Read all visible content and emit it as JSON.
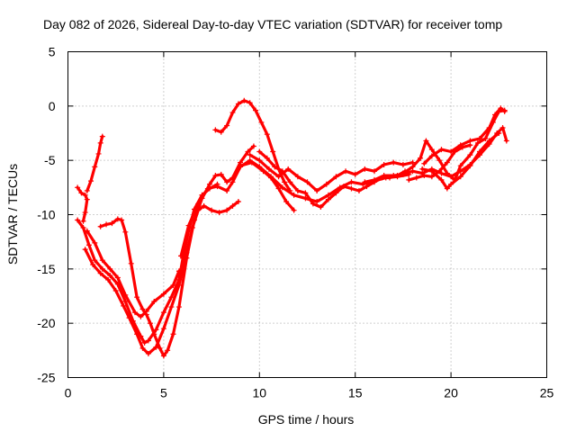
{
  "chart_data": {
    "type": "scatter",
    "title": "Day 082 of 2026, Sidereal Day-to-day VTEC variation (SDTVAR) for receiver tomp",
    "xlabel": "GPS time / hours",
    "ylabel": "SDTVAR / TECUs",
    "xlim": [
      0,
      25
    ],
    "ylim": [
      -25,
      5
    ],
    "xticks": [
      "0",
      "5",
      "10",
      "15",
      "20",
      "25"
    ],
    "yticks": [
      "-25",
      "-20",
      "-15",
      "-10",
      "-5",
      "0",
      "5"
    ],
    "grid": true,
    "marker": "plus",
    "color": "#ff0000",
    "series": [
      {
        "points": [
          [
            0.5,
            -10.5
          ],
          [
            0.8,
            -11.2
          ],
          [
            1.1,
            -12.8
          ],
          [
            1.4,
            -14.2
          ],
          [
            1.8,
            -15.0
          ],
          [
            2.2,
            -15.6
          ],
          [
            2.6,
            -16.4
          ],
          [
            3.0,
            -18.0
          ],
          [
            3.4,
            -19.8
          ],
          [
            3.8,
            -21.2
          ],
          [
            4.0,
            -21.8
          ],
          [
            4.2,
            -21.6
          ],
          [
            4.6,
            -20.6
          ],
          [
            5.0,
            -19.0
          ],
          [
            5.4,
            -17.6
          ],
          [
            5.8,
            -16.0
          ],
          [
            6.0,
            -14.0
          ],
          [
            6.3,
            -11.5
          ],
          [
            6.6,
            -9.5
          ],
          [
            7.0,
            -8.2
          ],
          [
            7.4,
            -7.6
          ],
          [
            7.8,
            -7.2
          ]
        ]
      },
      {
        "points": [
          [
            0.9,
            -13.2
          ],
          [
            1.3,
            -14.6
          ],
          [
            1.7,
            -15.4
          ],
          [
            2.1,
            -16.0
          ],
          [
            2.5,
            -17.0
          ],
          [
            2.9,
            -18.4
          ],
          [
            3.2,
            -19.5
          ],
          [
            3.6,
            -21.0
          ],
          [
            3.9,
            -22.3
          ],
          [
            4.2,
            -22.8
          ],
          [
            4.6,
            -22.2
          ],
          [
            5.0,
            -20.5
          ],
          [
            5.4,
            -18.5
          ],
          [
            5.8,
            -16.5
          ],
          [
            6.2,
            -13.5
          ],
          [
            6.5,
            -11.2
          ],
          [
            6.8,
            -9.6
          ],
          [
            7.1,
            -9.2
          ],
          [
            7.5,
            -9.6
          ],
          [
            7.9,
            -9.8
          ],
          [
            8.3,
            -9.6
          ],
          [
            8.6,
            -9.2
          ],
          [
            8.9,
            -8.8
          ]
        ]
      },
      {
        "points": [
          [
            1.0,
            -11.5
          ],
          [
            1.4,
            -12.6
          ],
          [
            1.8,
            -14.2
          ],
          [
            2.2,
            -15.0
          ],
          [
            2.6,
            -15.8
          ],
          [
            3.0,
            -17.4
          ],
          [
            3.5,
            -19.0
          ],
          [
            3.8,
            -19.4
          ],
          [
            4.1,
            -18.9
          ],
          [
            4.5,
            -18.0
          ],
          [
            5.0,
            -17.3
          ],
          [
            5.5,
            -16.5
          ],
          [
            5.8,
            -15.2
          ]
        ]
      },
      {
        "points": [
          [
            1.7,
            -11.1
          ],
          [
            2.0,
            -10.9
          ],
          [
            2.3,
            -10.8
          ],
          [
            2.6,
            -10.4
          ],
          [
            2.8,
            -10.5
          ],
          [
            3.0,
            -11.6
          ],
          [
            3.3,
            -14.5
          ],
          [
            3.6,
            -17.6
          ],
          [
            3.9,
            -18.7
          ],
          [
            4.1,
            -19.2
          ],
          [
            4.3,
            -20.0
          ],
          [
            4.5,
            -21.0
          ],
          [
            4.8,
            -22.3
          ],
          [
            5.0,
            -23.0
          ],
          [
            5.2,
            -22.5
          ],
          [
            5.5,
            -21.0
          ],
          [
            5.8,
            -18.5
          ],
          [
            6.2,
            -14.0
          ],
          [
            6.6,
            -10.5
          ],
          [
            7.0,
            -8.5
          ],
          [
            7.4,
            -7.2
          ],
          [
            7.7,
            -6.4
          ],
          [
            8.0,
            -6.3
          ],
          [
            8.3,
            -7.0
          ],
          [
            8.6,
            -6.6
          ],
          [
            9.0,
            -5.2
          ],
          [
            9.4,
            -4.2
          ],
          [
            9.7,
            -3.7
          ]
        ]
      },
      {
        "points": [
          [
            5.9,
            -13.8
          ],
          [
            6.3,
            -11.0
          ],
          [
            6.8,
            -9.0
          ],
          [
            7.3,
            -7.6
          ],
          [
            7.8,
            -7.4
          ],
          [
            8.3,
            -7.8
          ],
          [
            8.6,
            -7.0
          ],
          [
            9.0,
            -5.6
          ],
          [
            9.5,
            -5.0
          ],
          [
            10.0,
            -5.6
          ],
          [
            10.6,
            -6.5
          ],
          [
            11.2,
            -7.5
          ],
          [
            11.8,
            -8.2
          ],
          [
            12.4,
            -8.5
          ],
          [
            13.0,
            -8.8
          ],
          [
            13.6,
            -8.2
          ],
          [
            14.2,
            -7.5
          ],
          [
            14.8,
            -7.0
          ],
          [
            15.4,
            -7.2
          ],
          [
            16.0,
            -6.9
          ],
          [
            16.6,
            -6.6
          ],
          [
            17.2,
            -6.5
          ],
          [
            17.8,
            -6.3
          ]
        ]
      },
      {
        "points": [
          [
            9.0,
            -5.5
          ],
          [
            9.6,
            -5.2
          ],
          [
            10.2,
            -6.0
          ],
          [
            10.6,
            -6.6
          ],
          [
            11.0,
            -7.6
          ],
          [
            11.4,
            -8.8
          ],
          [
            11.8,
            -9.6
          ]
        ]
      },
      {
        "points": [
          [
            9.5,
            -4.5
          ],
          [
            10.0,
            -5.0
          ],
          [
            10.5,
            -5.8
          ],
          [
            11.0,
            -6.5
          ],
          [
            11.5,
            -5.8
          ],
          [
            12.0,
            -6.5
          ],
          [
            12.5,
            -7.0
          ],
          [
            13.0,
            -7.8
          ],
          [
            13.5,
            -7.2
          ],
          [
            14.0,
            -6.5
          ],
          [
            14.5,
            -6.0
          ],
          [
            15.0,
            -6.3
          ],
          [
            15.5,
            -5.8
          ],
          [
            16.0,
            -6.0
          ],
          [
            16.5,
            -5.4
          ],
          [
            17.0,
            -5.2
          ],
          [
            17.5,
            -5.4
          ],
          [
            18.0,
            -5.2
          ]
        ]
      },
      {
        "points": [
          [
            10.0,
            -4.2
          ],
          [
            10.4,
            -4.8
          ],
          [
            10.8,
            -5.6
          ],
          [
            11.2,
            -6.0
          ],
          [
            11.6,
            -7.0
          ],
          [
            12.0,
            -7.8
          ],
          [
            12.4,
            -8.0
          ],
          [
            12.8,
            -9.0
          ],
          [
            13.2,
            -9.3
          ],
          [
            13.6,
            -8.6
          ],
          [
            14.0,
            -8.0
          ],
          [
            14.4,
            -7.4
          ],
          [
            14.8,
            -7.6
          ],
          [
            15.2,
            -7.8
          ],
          [
            15.6,
            -7.4
          ],
          [
            16.0,
            -7.0
          ],
          [
            16.4,
            -6.6
          ],
          [
            16.8,
            -6.6
          ],
          [
            17.2,
            -6.4
          ],
          [
            17.6,
            -6.0
          ]
        ]
      },
      {
        "points": [
          [
            7.7,
            -2.2
          ],
          [
            8.0,
            -2.4
          ],
          [
            8.3,
            -1.8
          ],
          [
            8.6,
            -0.6
          ],
          [
            8.9,
            0.2
          ],
          [
            9.2,
            0.5
          ],
          [
            9.5,
            0.3
          ],
          [
            9.8,
            -0.4
          ],
          [
            10.1,
            -1.5
          ],
          [
            10.4,
            -2.6
          ],
          [
            10.7,
            -4.2
          ],
          [
            11.0,
            -5.8
          ],
          [
            11.3,
            -7.0
          ],
          [
            11.6,
            -7.8
          ]
        ]
      },
      {
        "points": [
          [
            15.5,
            -7.0
          ],
          [
            16.0,
            -6.8
          ],
          [
            16.5,
            -6.4
          ],
          [
            17.0,
            -6.4
          ],
          [
            17.5,
            -6.3
          ],
          [
            18.0,
            -6.0
          ],
          [
            18.5,
            -6.2
          ],
          [
            19.0,
            -5.8
          ],
          [
            19.5,
            -6.2
          ],
          [
            20.0,
            -6.5
          ],
          [
            20.5,
            -6.0
          ],
          [
            21.0,
            -5.4
          ],
          [
            21.5,
            -4.5
          ],
          [
            22.0,
            -3.5
          ],
          [
            22.4,
            -2.5
          ],
          [
            22.7,
            -2.0
          ],
          [
            22.9,
            -3.2
          ]
        ]
      },
      {
        "points": [
          [
            17.5,
            -6.2
          ],
          [
            18.0,
            -5.6
          ],
          [
            18.4,
            -4.8
          ],
          [
            18.7,
            -3.2
          ],
          [
            19.0,
            -4.0
          ],
          [
            19.4,
            -5.0
          ],
          [
            19.8,
            -6.2
          ],
          [
            20.2,
            -6.8
          ],
          [
            20.5,
            -5.5
          ],
          [
            21.0,
            -4.5
          ],
          [
            21.4,
            -3.4
          ],
          [
            21.8,
            -3.0
          ],
          [
            22.2,
            -1.5
          ],
          [
            22.5,
            -0.5
          ],
          [
            22.8,
            -0.4
          ]
        ]
      },
      {
        "points": [
          [
            18.6,
            -5.3
          ],
          [
            19.0,
            -4.6
          ],
          [
            19.5,
            -4.0
          ],
          [
            20.0,
            -4.2
          ],
          [
            20.5,
            -3.6
          ],
          [
            21.0,
            -3.2
          ],
          [
            21.5,
            -3.0
          ],
          [
            22.0,
            -2.0
          ],
          [
            22.3,
            -0.8
          ],
          [
            22.6,
            -0.2
          ],
          [
            22.8,
            -0.5
          ]
        ]
      },
      {
        "points": [
          [
            18.5,
            -5.8
          ],
          [
            19.0,
            -6.0
          ],
          [
            19.5,
            -6.8
          ],
          [
            19.8,
            -7.6
          ],
          [
            20.0,
            -7.2
          ],
          [
            20.5,
            -6.5
          ],
          [
            21.0,
            -5.5
          ],
          [
            21.5,
            -4.2
          ],
          [
            22.0,
            -3.2
          ],
          [
            22.5,
            -2.5
          ]
        ]
      },
      {
        "points": [
          [
            17.8,
            -6.8
          ],
          [
            18.2,
            -6.6
          ],
          [
            18.6,
            -6.4
          ],
          [
            19.0,
            -6.5
          ],
          [
            19.4,
            -6.0
          ],
          [
            19.8,
            -5.2
          ],
          [
            20.2,
            -4.2
          ],
          [
            20.6,
            -3.8
          ],
          [
            21.0,
            -3.6
          ]
        ]
      },
      {
        "points": [
          [
            0.5,
            -7.5
          ],
          [
            0.7,
            -8.0
          ],
          [
            0.9,
            -8.2
          ],
          [
            1.0,
            -8.6
          ],
          [
            0.9,
            -9.8
          ],
          [
            0.8,
            -10.6
          ]
        ]
      },
      {
        "points": [
          [
            1.0,
            -7.8
          ],
          [
            1.2,
            -6.9
          ],
          [
            1.4,
            -5.6
          ],
          [
            1.6,
            -4.4
          ],
          [
            1.7,
            -3.4
          ],
          [
            1.8,
            -2.8
          ]
        ]
      }
    ]
  }
}
